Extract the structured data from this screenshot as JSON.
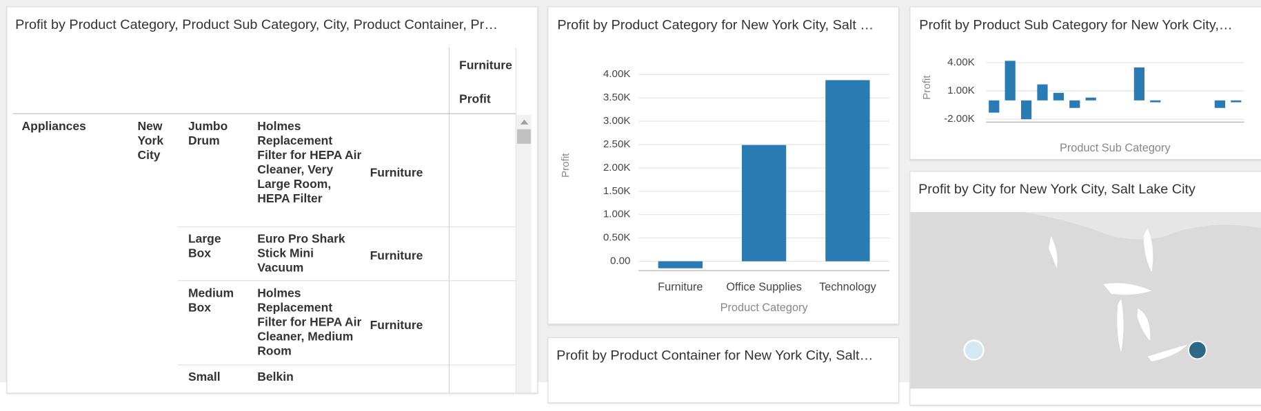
{
  "table_panel": {
    "title": "Profit by Product Category, Product Sub Category, City, Product Container, Pr…",
    "column_headers": [
      "Furniture",
      "Profit"
    ],
    "rows": [
      {
        "category": "Appliances",
        "city": "New York City",
        "container": "Jumbo Drum",
        "product": "Holmes Replacement Filter for HEPA Air Cleaner, Very Large Room, HEPA Filter",
        "group": "Furniture"
      },
      {
        "container": "Large Box",
        "product": "Euro Pro Shark Stick Mini Vacuum",
        "group": "Furniture"
      },
      {
        "container": "Medium Box",
        "product": "Holmes Replacement Filter for HEPA Air Cleaner, Medium Room",
        "group": "Furniture"
      },
      {
        "container": "Small",
        "product": "Belkin"
      }
    ]
  },
  "chart_data": [
    {
      "type": "bar",
      "title": "Profit by Product Category for New York City, Salt …",
      "categories": [
        "Furniture",
        "Office Supplies",
        "Technology"
      ],
      "values": [
        -150,
        2490,
        3880
      ],
      "color": "#2a7bb4",
      "x_label": "Product Category",
      "y_label": "Profit",
      "ylim": [
        -200,
        4100
      ],
      "grid": true,
      "yticks": [
        {
          "value": 0,
          "label": "0.00"
        },
        {
          "value": 500,
          "label": "0.50K"
        },
        {
          "value": 1000,
          "label": "1.00K"
        },
        {
          "value": 1500,
          "label": "1.50K"
        },
        {
          "value": 2000,
          "label": "2.00K"
        },
        {
          "value": 2500,
          "label": "2.50K"
        },
        {
          "value": 3000,
          "label": "3.00K"
        },
        {
          "value": 3500,
          "label": "3.50K"
        },
        {
          "value": 4000,
          "label": "4.00K"
        }
      ]
    },
    {
      "type": "bar",
      "title": "Profit by Product Sub Category for New York City,…",
      "categories": [
        null,
        null,
        null,
        null,
        null,
        null,
        null,
        null,
        null,
        null,
        null,
        null,
        null,
        null,
        null,
        null
      ],
      "values": [
        -1300,
        4200,
        -2000,
        1700,
        800,
        -800,
        300,
        null,
        null,
        3500,
        -200,
        null,
        null,
        null,
        -800,
        -200
      ],
      "color": "#2a7bb4",
      "x_label": "Product Sub Category",
      "y_label": "Profit",
      "ylim": [
        -2300,
        5200
      ],
      "grid": true,
      "yticks": [
        {
          "value": -2000,
          "label": "-2.00K"
        },
        {
          "value": 1000,
          "label": "1.00K"
        },
        {
          "value": 4000,
          "label": "4.00K"
        }
      ]
    }
  ],
  "map_panel": {
    "title": "Profit by City for New York City, Salt Lake City"
  },
  "container_panel": {
    "title": "Profit by Product Container for New York City, Salt…"
  }
}
